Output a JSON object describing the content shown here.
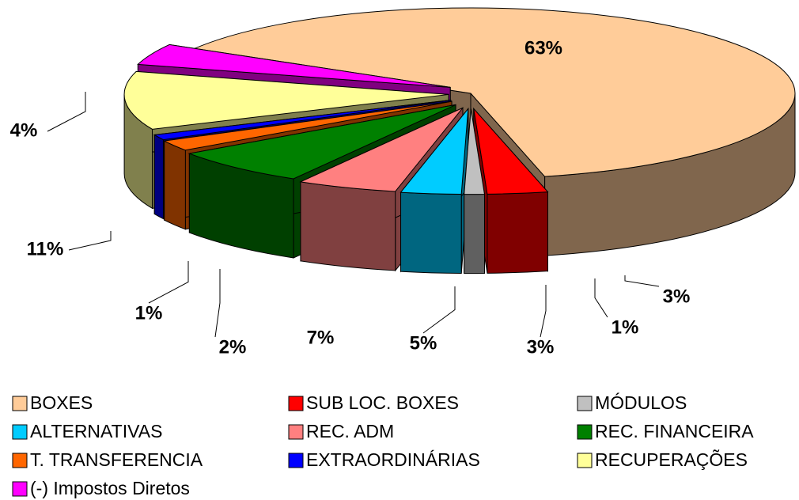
{
  "chart_data": {
    "type": "pie",
    "categories": [
      "BOXES",
      "SUB LOC. BOXES",
      "MÓDULOS",
      "ALTERNATIVAS",
      "REC. ADM",
      "REC. FINANCEIRA",
      "T. TRANSFERENCIA",
      "EXTRAORDINÁRIAS",
      "RECUPERAÇÕES",
      "(-) Impostos  Diretos"
    ],
    "values": [
      63,
      3,
      1,
      3,
      5,
      7,
      2,
      1,
      11,
      4
    ],
    "value_labels": [
      "63%",
      "3%",
      "1%",
      "3%",
      "5%",
      "7%",
      "2%",
      "1%",
      "11%",
      "4%"
    ],
    "colors": [
      "#FFCC99",
      "#FF0000",
      "#C0C0C0",
      "#00CCFF",
      "#FF8080",
      "#008000",
      "#FF6600",
      "#0000FF",
      "#FFFF99",
      "#FF00FF"
    ],
    "legend": "bottom"
  }
}
